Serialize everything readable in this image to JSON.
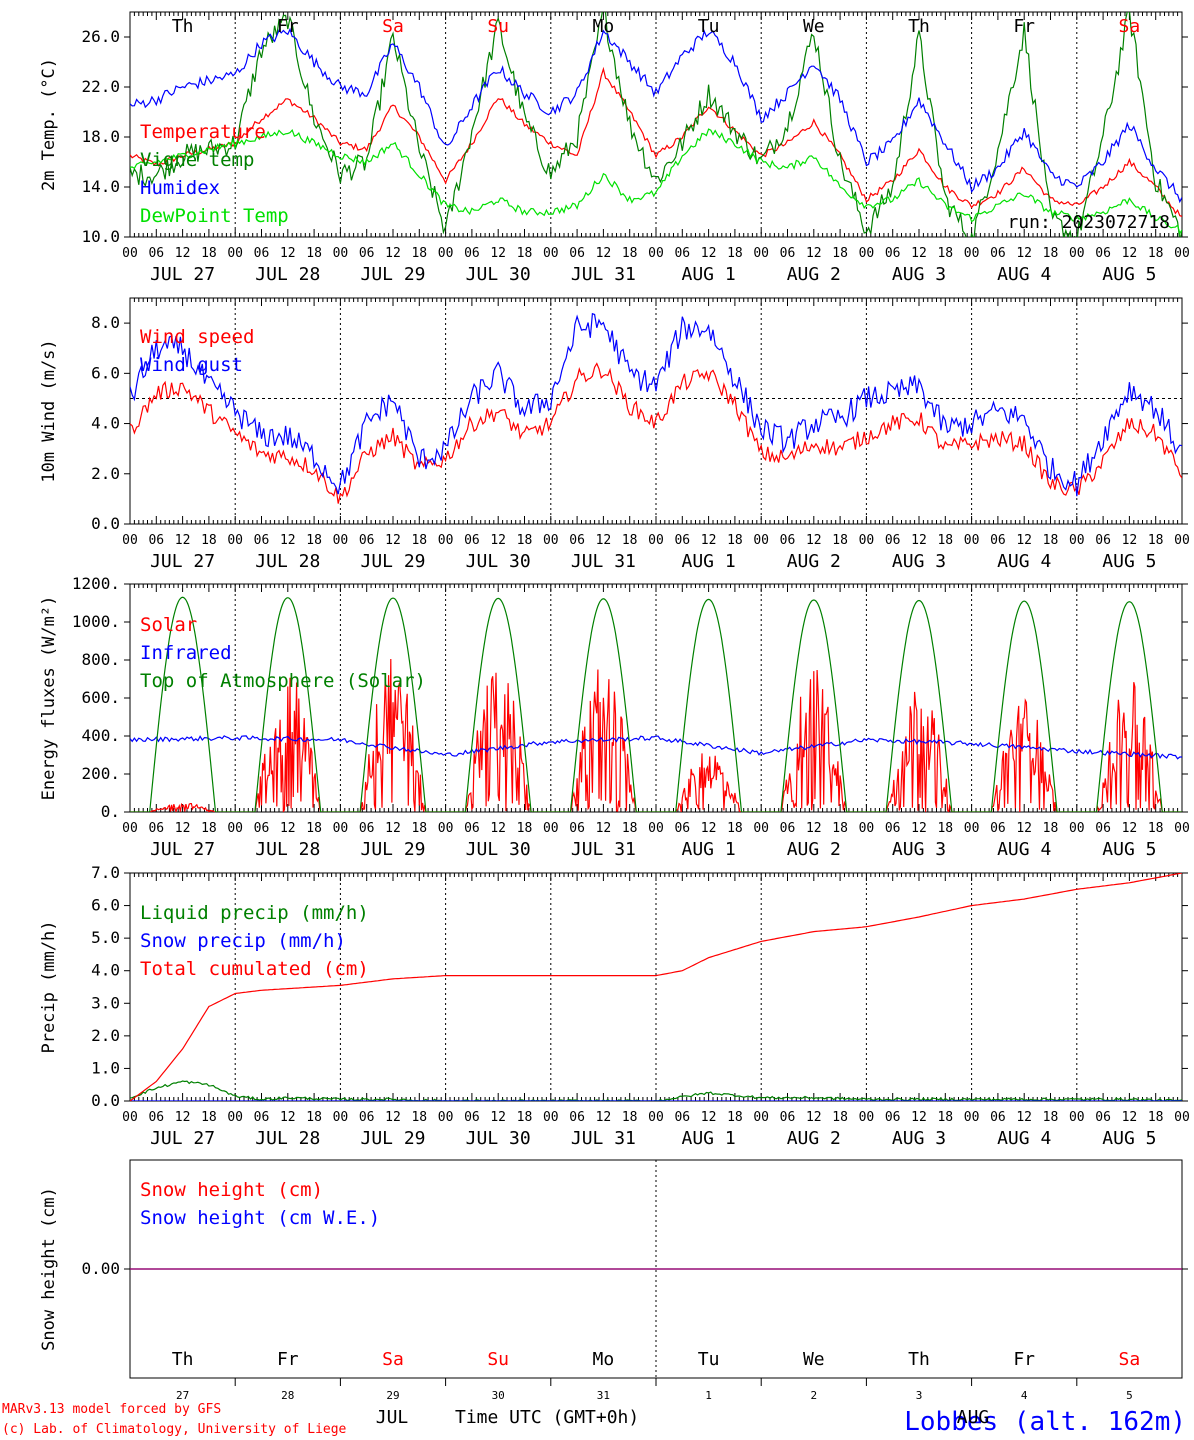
{
  "run_label": "run: 2023072718",
  "footer": {
    "credit_1": "MARv3.13 model forced by GFS",
    "credit_2": "(c) Lab. of Climatology, University of Liege",
    "station": "Lobbes (alt. 162m)",
    "xlabel": "Time UTC (GMT+0h)",
    "month_jul": "JUL",
    "month_aug": "AUG"
  },
  "colors": {
    "red": "#ff0000",
    "green": "#008000",
    "blue": "#0000ff",
    "lightgreen": "#00e000",
    "purple": "#800080",
    "black": "#000000"
  },
  "hour_ticks": [
    "00",
    "06",
    "12",
    "18"
  ],
  "days": [
    {
      "weekday": "Th",
      "date": "JUL 27",
      "daynum": "27",
      "weekend": false
    },
    {
      "weekday": "Fr",
      "date": "JUL 28",
      "daynum": "28",
      "weekend": false
    },
    {
      "weekday": "Sa",
      "date": "JUL 29",
      "daynum": "29",
      "weekend": true
    },
    {
      "weekday": "Su",
      "date": "JUL 30",
      "daynum": "30",
      "weekend": true
    },
    {
      "weekday": "Mo",
      "date": "JUL 31",
      "daynum": "31",
      "weekend": false
    },
    {
      "weekday": "Tu",
      "date": "AUG  1",
      "daynum": "1",
      "weekend": false
    },
    {
      "weekday": "We",
      "date": "AUG  2",
      "daynum": "2",
      "weekend": false
    },
    {
      "weekday": "Th",
      "date": "AUG  3",
      "daynum": "3",
      "weekend": false
    },
    {
      "weekday": "Fr",
      "date": "AUG  4",
      "daynum": "4",
      "weekend": false
    },
    {
      "weekday": "Sa",
      "date": "AUG  5",
      "daynum": "5",
      "weekend": true
    }
  ],
  "chart_data": [
    {
      "type": "line",
      "ylabel": "2m Temp. (°C)",
      "ylim": [
        10,
        28
      ],
      "yticks": [
        "10.0",
        "14.0",
        "18.0",
        "22.0",
        "26.0"
      ],
      "ytick_values": [
        10,
        14,
        18,
        22,
        26
      ],
      "x_unit": "hours since 2023-07-27 00 UTC",
      "series": [
        {
          "name": "Temperature",
          "color": "red",
          "x": [
            0,
            6,
            12,
            18,
            24,
            30,
            36,
            42,
            48,
            54,
            60,
            66,
            72,
            78,
            84,
            90,
            96,
            102,
            108,
            114,
            120,
            126,
            132,
            138,
            144,
            150,
            156,
            162,
            168,
            174,
            180,
            186,
            192,
            198,
            204,
            210,
            216,
            222,
            228,
            234,
            240
          ],
          "values": [
            16.5,
            15.8,
            16.5,
            17.0,
            17.5,
            19.5,
            21.0,
            19.5,
            17.5,
            17.0,
            20.5,
            18.0,
            14.5,
            17.5,
            21.2,
            19.0,
            17.5,
            16.5,
            23.2,
            20.0,
            16.5,
            18.0,
            20.5,
            18.5,
            16.5,
            17.5,
            19.2,
            16.5,
            13.0,
            14.5,
            17.0,
            14.0,
            12.5,
            13.5,
            15.5,
            13.0,
            12.5,
            14.0,
            16.0,
            14.0,
            11.5
          ]
        },
        {
          "name": "Vigne temp",
          "color": "green",
          "x": [
            0,
            6,
            12,
            18,
            24,
            30,
            36,
            42,
            48,
            54,
            60,
            66,
            72,
            78,
            84,
            90,
            96,
            102,
            108,
            114,
            120,
            126,
            132,
            138,
            144,
            150,
            156,
            162,
            168,
            174,
            180,
            186,
            192,
            198,
            204,
            210,
            216,
            222,
            228,
            234,
            240
          ],
          "values": [
            15.0,
            15.0,
            16.5,
            17.0,
            17.5,
            25.0,
            27.5,
            19.5,
            15.0,
            16.0,
            26.0,
            17.0,
            10.5,
            18.5,
            27.0,
            19.5,
            15.0,
            18.0,
            28.0,
            19.0,
            14.5,
            17.5,
            21.5,
            18.5,
            16.0,
            19.0,
            26.5,
            16.0,
            10.5,
            14.0,
            26.0,
            13.0,
            9.8,
            17.0,
            26.5,
            11.5,
            9.8,
            18.0,
            28.0,
            14.5,
            10.2
          ]
        },
        {
          "name": "Humidex",
          "color": "blue",
          "x": [
            0,
            6,
            12,
            18,
            24,
            30,
            36,
            42,
            48,
            54,
            60,
            66,
            72,
            78,
            84,
            90,
            96,
            102,
            108,
            114,
            120,
            126,
            132,
            138,
            144,
            150,
            156,
            162,
            168,
            174,
            180,
            186,
            192,
            198,
            204,
            210,
            216,
            222,
            228,
            234,
            240
          ],
          "values": [
            20.5,
            21.0,
            22.0,
            22.5,
            23.0,
            25.5,
            26.5,
            24.0,
            22.0,
            21.5,
            25.5,
            22.0,
            17.0,
            20.5,
            23.5,
            21.5,
            20.0,
            21.5,
            26.5,
            24.0,
            21.5,
            24.5,
            26.5,
            24.0,
            19.5,
            21.5,
            24.0,
            21.0,
            16.0,
            17.5,
            21.0,
            17.5,
            14.0,
            15.5,
            18.5,
            15.0,
            14.0,
            16.0,
            19.0,
            15.5,
            13.0
          ]
        },
        {
          "name": "DewPoint Temp",
          "color": "lightgreen",
          "x": [
            0,
            6,
            12,
            18,
            24,
            30,
            36,
            42,
            48,
            54,
            60,
            66,
            72,
            78,
            84,
            90,
            96,
            102,
            108,
            114,
            120,
            126,
            132,
            138,
            144,
            150,
            156,
            162,
            168,
            174,
            180,
            186,
            192,
            198,
            204,
            210,
            216,
            222,
            228,
            234,
            240
          ],
          "values": [
            15.5,
            16.0,
            16.5,
            17.0,
            17.5,
            18.0,
            18.5,
            17.5,
            16.5,
            16.0,
            17.5,
            15.0,
            12.5,
            12.0,
            13.0,
            12.0,
            12.0,
            12.5,
            15.0,
            13.0,
            13.5,
            16.5,
            18.5,
            17.5,
            16.0,
            15.5,
            16.5,
            14.0,
            12.5,
            13.0,
            14.5,
            12.5,
            11.5,
            12.5,
            13.5,
            12.0,
            11.5,
            12.0,
            13.0,
            11.5,
            10.5
          ]
        }
      ]
    },
    {
      "type": "line",
      "ylabel": "10m Wind (m/s)",
      "ylim": [
        0,
        9
      ],
      "yticks": [
        "0.0",
        "2.0",
        "4.0",
        "6.0",
        "8.0"
      ],
      "ytick_values": [
        0,
        2,
        4,
        6,
        8
      ],
      "reference_line": 5.0,
      "x_unit": "hours since 2023-07-27 00 UTC",
      "series": [
        {
          "name": "Wind speed",
          "color": "red",
          "x": [
            0,
            6,
            12,
            18,
            24,
            30,
            36,
            42,
            48,
            54,
            60,
            66,
            72,
            78,
            84,
            90,
            96,
            102,
            108,
            114,
            120,
            126,
            132,
            138,
            144,
            150,
            156,
            162,
            168,
            174,
            180,
            186,
            192,
            198,
            204,
            210,
            216,
            222,
            228,
            234,
            240
          ],
          "values": [
            3.7,
            5.2,
            5.5,
            4.5,
            3.6,
            2.8,
            2.7,
            2.2,
            1.0,
            2.8,
            3.5,
            2.2,
            2.6,
            4.0,
            4.5,
            3.5,
            4.0,
            5.8,
            6.2,
            4.7,
            4.0,
            5.6,
            6.0,
            4.8,
            2.8,
            2.6,
            3.2,
            3.0,
            3.5,
            4.0,
            4.2,
            3.0,
            3.2,
            3.4,
            3.2,
            1.6,
            1.3,
            2.5,
            4.0,
            3.6,
            2.0
          ]
        },
        {
          "name": "Wind gust",
          "color": "blue",
          "x": [
            0,
            6,
            12,
            18,
            24,
            30,
            36,
            42,
            48,
            54,
            60,
            66,
            72,
            78,
            84,
            90,
            96,
            102,
            108,
            114,
            120,
            126,
            132,
            138,
            144,
            150,
            156,
            162,
            168,
            174,
            180,
            186,
            192,
            198,
            204,
            210,
            216,
            222,
            228,
            234,
            240
          ],
          "values": [
            5.0,
            7.0,
            7.0,
            5.5,
            4.5,
            3.5,
            3.5,
            2.7,
            1.5,
            4.0,
            5.0,
            2.5,
            3.0,
            5.0,
            6.0,
            4.5,
            5.0,
            7.8,
            8.0,
            6.0,
            5.5,
            7.8,
            7.8,
            5.8,
            3.8,
            3.3,
            4.0,
            4.2,
            5.0,
            5.2,
            5.5,
            3.8,
            4.0,
            4.5,
            4.2,
            2.2,
            1.6,
            3.5,
            5.4,
            4.6,
            2.8
          ]
        }
      ]
    },
    {
      "type": "line",
      "ylabel": "Energy fluxes (W/m²)",
      "ylim": [
        0,
        1200
      ],
      "yticks": [
        "0.",
        "200.",
        "400.",
        "600.",
        "800.",
        "1000.",
        "1200."
      ],
      "ytick_values": [
        0,
        200,
        400,
        600,
        800,
        1000,
        1200
      ],
      "x_unit": "hours since 2023-07-27 00 UTC",
      "daily_solar_peaks": [
        50,
        800,
        830,
        810,
        790,
        340,
        790,
        700,
        610,
        700
      ],
      "daily_toa_peaks": [
        1130,
        1128,
        1126,
        1124,
        1122,
        1119,
        1116,
        1113,
        1110,
        1107
      ],
      "daylight_hours": [
        4.5,
        19.5
      ],
      "series": [
        {
          "name": "Solar",
          "color": "red",
          "shape": "daily_solar_peaks"
        },
        {
          "name": "Infrared",
          "color": "blue",
          "x": [
            0,
            24,
            48,
            72,
            96,
            120,
            144,
            168,
            192,
            216,
            240
          ],
          "values": [
            380,
            390,
            380,
            300,
            370,
            390,
            310,
            380,
            360,
            320,
            290
          ]
        },
        {
          "name": "Top of Atmosphere (Solar)",
          "color": "green",
          "shape": "daily_toa_peaks"
        }
      ]
    },
    {
      "type": "line",
      "ylabel": "Precip (mm/h)",
      "ylim": [
        0,
        7
      ],
      "yticks": [
        "0.0",
        "1.0",
        "2.0",
        "3.0",
        "4.0",
        "5.0",
        "6.0",
        "7.0"
      ],
      "ytick_values": [
        0,
        1,
        2,
        3,
        4,
        5,
        6,
        7
      ],
      "x_unit": "hours since 2023-07-27 00 UTC",
      "series": [
        {
          "name": "Liquid precip (mm/h)",
          "color": "green",
          "x": [
            0,
            6,
            12,
            18,
            24,
            30,
            36,
            48,
            60,
            72,
            120,
            132,
            144,
            156,
            168,
            180,
            192,
            204,
            216,
            228,
            240
          ],
          "values": [
            0.1,
            0.4,
            0.6,
            0.5,
            0.15,
            0.05,
            0.1,
            0.05,
            0.05,
            0.0,
            0.0,
            0.25,
            0.1,
            0.1,
            0.05,
            0.05,
            0.05,
            0.05,
            0.05,
            0.05,
            0.0
          ]
        },
        {
          "name": "Snow precip (mm/h)",
          "color": "blue",
          "x": [
            0,
            240
          ],
          "values": [
            0.0,
            0.0
          ]
        },
        {
          "name": "Total cumulated (cm)",
          "color": "red",
          "x": [
            0,
            6,
            12,
            18,
            24,
            30,
            36,
            48,
            60,
            72,
            96,
            120,
            126,
            132,
            144,
            156,
            168,
            180,
            192,
            204,
            216,
            228,
            240
          ],
          "values": [
            0.0,
            0.6,
            1.6,
            2.9,
            3.3,
            3.4,
            3.45,
            3.55,
            3.75,
            3.85,
            3.85,
            3.85,
            4.0,
            4.4,
            4.9,
            5.2,
            5.35,
            5.65,
            6.0,
            6.2,
            6.5,
            6.7,
            7.0
          ]
        }
      ]
    },
    {
      "type": "line",
      "ylabel": "Snow height (cm)",
      "yticks": [
        "0.00"
      ],
      "ytick_values": [
        0
      ],
      "x_unit": "hours since 2023-07-27 00 UTC",
      "series": [
        {
          "name": "Snow height (cm)",
          "color": "red",
          "x": [
            0,
            240
          ],
          "values": [
            0,
            0
          ]
        },
        {
          "name": "Snow height (cm W.E.)",
          "color": "blue",
          "x": [
            0,
            240
          ],
          "values": [
            0,
            0
          ]
        }
      ]
    }
  ]
}
